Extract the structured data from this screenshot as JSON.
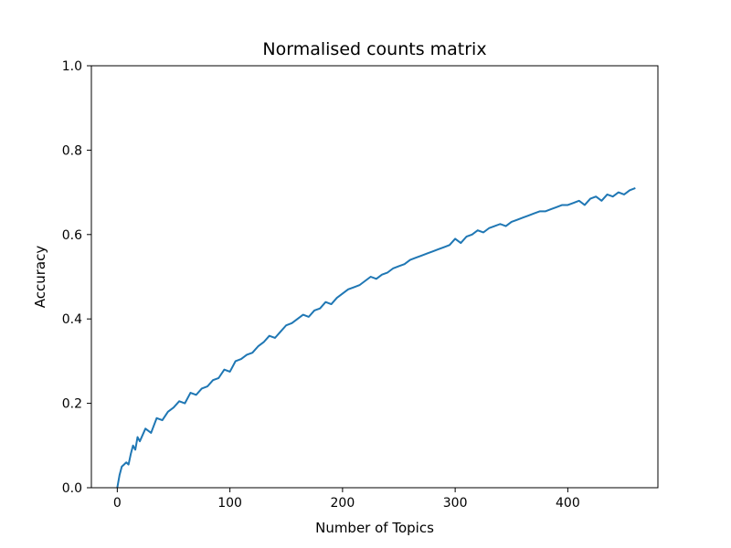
{
  "chart_data": {
    "type": "line",
    "title": "Normalised counts matrix",
    "xlabel": "Number of Topics",
    "ylabel": "Accuracy",
    "xlim": [
      -23,
      480
    ],
    "ylim": [
      0.0,
      1.0
    ],
    "xticks": [
      0,
      100,
      200,
      300,
      400
    ],
    "xtick_labels": [
      "0",
      "100",
      "200",
      "300",
      "400"
    ],
    "yticks": [
      0.0,
      0.2,
      0.4,
      0.6,
      0.8,
      1.0
    ],
    "ytick_labels": [
      "0.0",
      "0.2",
      "0.4",
      "0.6",
      "0.8",
      "1.0"
    ],
    "grid": false,
    "legend": "none",
    "series": [
      {
        "color": "#1f77b4",
        "x": [
          0,
          2,
          4,
          6,
          8,
          10,
          12,
          14,
          16,
          18,
          20,
          25,
          30,
          35,
          40,
          45,
          50,
          55,
          60,
          65,
          70,
          75,
          80,
          85,
          90,
          95,
          100,
          105,
          110,
          115,
          120,
          125,
          130,
          135,
          140,
          145,
          150,
          155,
          160,
          165,
          170,
          175,
          180,
          185,
          190,
          195,
          200,
          205,
          210,
          215,
          220,
          225,
          230,
          235,
          240,
          245,
          250,
          255,
          260,
          265,
          270,
          275,
          280,
          285,
          290,
          295,
          300,
          305,
          310,
          315,
          320,
          325,
          330,
          335,
          340,
          345,
          350,
          355,
          360,
          365,
          370,
          375,
          380,
          385,
          390,
          395,
          400,
          405,
          410,
          415,
          420,
          425,
          430,
          435,
          440,
          445,
          450,
          455,
          460
        ],
        "y": [
          0.0,
          0.03,
          0.05,
          0.055,
          0.06,
          0.055,
          0.08,
          0.1,
          0.09,
          0.12,
          0.11,
          0.14,
          0.13,
          0.165,
          0.16,
          0.18,
          0.19,
          0.205,
          0.2,
          0.225,
          0.22,
          0.235,
          0.24,
          0.255,
          0.26,
          0.28,
          0.275,
          0.3,
          0.305,
          0.315,
          0.32,
          0.335,
          0.345,
          0.36,
          0.355,
          0.37,
          0.385,
          0.39,
          0.4,
          0.41,
          0.405,
          0.42,
          0.425,
          0.44,
          0.435,
          0.45,
          0.46,
          0.47,
          0.475,
          0.48,
          0.49,
          0.5,
          0.495,
          0.505,
          0.51,
          0.52,
          0.525,
          0.53,
          0.54,
          0.545,
          0.55,
          0.555,
          0.56,
          0.565,
          0.57,
          0.575,
          0.59,
          0.58,
          0.595,
          0.6,
          0.61,
          0.605,
          0.615,
          0.62,
          0.625,
          0.62,
          0.63,
          0.635,
          0.64,
          0.645,
          0.65,
          0.655,
          0.655,
          0.66,
          0.665,
          0.67,
          0.67,
          0.675,
          0.68,
          0.67,
          0.685,
          0.69,
          0.68,
          0.695,
          0.69,
          0.7,
          0.695,
          0.705,
          0.71
        ]
      }
    ]
  }
}
